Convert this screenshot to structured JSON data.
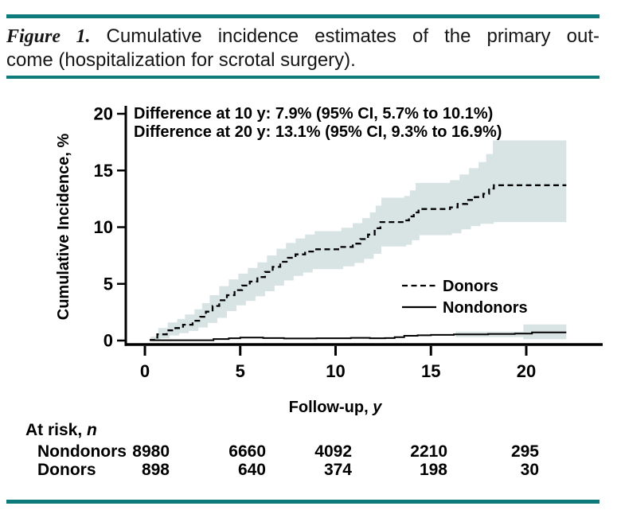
{
  "figure": {
    "label": "Figure 1.",
    "caption_line1": "Cumulative incidence estimates of the primary out-",
    "caption_line2": "come (hospitalization for scrotal surgery)."
  },
  "colors": {
    "teal_rule": "#0d7a7b",
    "ci_band": "#d8e3e3",
    "line": "#000000"
  },
  "chart_data": {
    "type": "line",
    "subtype": "step-cumulative-incidence",
    "annotations": [
      "Difference at 10 y: 7.9% (95% CI, 5.7% to 10.1%)",
      "Difference at 20 y: 13.1% (95% CI, 9.3% to 16.9%)"
    ],
    "ylabel": "Cumulative Incidence, %",
    "xlabel_prefix": "Follow-up, ",
    "xlabel_italic": "y",
    "xlim": [
      0,
      22.3
    ],
    "ylim": [
      0,
      20
    ],
    "x_ticks": [
      0,
      5,
      10,
      15,
      20
    ],
    "y_ticks": [
      0,
      5,
      10,
      15,
      20
    ],
    "x_tick_labels": [
      "0",
      "5",
      "10",
      "15",
      "20"
    ],
    "y_tick_labels": [
      "0",
      "5",
      "10",
      "15",
      "20"
    ],
    "grid": false,
    "legend_position": "inside-right",
    "legend": [
      {
        "label": "Donors",
        "style": "dashed"
      },
      {
        "label": "Nondonors",
        "style": "solid"
      }
    ],
    "series": [
      {
        "name": "Donors",
        "style": "dashed",
        "steps": [
          [
            0.25,
            0.05
          ],
          [
            0.65,
            0.55
          ],
          [
            1.15,
            0.9
          ],
          [
            1.6,
            1.1
          ],
          [
            2.0,
            1.4
          ],
          [
            2.5,
            1.75
          ],
          [
            2.9,
            2.1
          ],
          [
            3.2,
            2.55
          ],
          [
            3.55,
            3.05
          ],
          [
            3.9,
            3.55
          ],
          [
            4.3,
            4.0
          ],
          [
            4.7,
            4.45
          ],
          [
            5.1,
            4.85
          ],
          [
            5.5,
            5.2
          ],
          [
            5.9,
            5.6
          ],
          [
            6.3,
            6.05
          ],
          [
            6.7,
            6.5
          ],
          [
            7.1,
            6.95
          ],
          [
            7.5,
            7.3
          ],
          [
            7.9,
            7.6
          ],
          [
            8.4,
            7.85
          ],
          [
            8.9,
            8.05
          ],
          [
            10.3,
            8.25
          ],
          [
            10.9,
            8.55
          ],
          [
            11.3,
            8.95
          ],
          [
            11.7,
            9.35
          ],
          [
            12.05,
            9.9
          ],
          [
            12.35,
            10.45
          ],
          [
            13.6,
            10.6
          ],
          [
            13.85,
            10.95
          ],
          [
            14.1,
            11.3
          ],
          [
            14.35,
            11.6
          ],
          [
            16.0,
            11.75
          ],
          [
            16.4,
            12.05
          ],
          [
            16.9,
            12.4
          ],
          [
            17.3,
            12.65
          ],
          [
            17.75,
            12.95
          ],
          [
            18.05,
            13.4
          ],
          [
            18.3,
            13.7
          ],
          [
            22.1,
            13.7
          ]
        ]
      },
      {
        "name": "Nondonors",
        "style": "solid",
        "steps": [
          [
            0.3,
            0.03
          ],
          [
            3.6,
            0.13
          ],
          [
            4.4,
            0.2
          ],
          [
            5.0,
            0.27
          ],
          [
            6.2,
            0.22
          ],
          [
            7.3,
            0.18
          ],
          [
            9.0,
            0.2
          ],
          [
            10.8,
            0.24
          ],
          [
            11.8,
            0.2
          ],
          [
            12.6,
            0.22
          ],
          [
            13.1,
            0.3
          ],
          [
            13.6,
            0.42
          ],
          [
            14.3,
            0.46
          ],
          [
            15.0,
            0.5
          ],
          [
            16.2,
            0.55
          ],
          [
            18.0,
            0.58
          ],
          [
            19.4,
            0.62
          ],
          [
            20.3,
            0.72
          ],
          [
            22.1,
            0.72
          ]
        ]
      }
    ],
    "bands": [
      {
        "series": "Donors",
        "label": "95% CI",
        "upper": [
          [
            0.3,
            0.35
          ],
          [
            0.7,
            1.1
          ],
          [
            1.2,
            1.6
          ],
          [
            1.7,
            1.9
          ],
          [
            2.1,
            2.3
          ],
          [
            2.6,
            2.75
          ],
          [
            3.0,
            3.3
          ],
          [
            3.4,
            4.0
          ],
          [
            3.9,
            4.8
          ],
          [
            4.4,
            5.4
          ],
          [
            4.9,
            5.9
          ],
          [
            5.4,
            6.4
          ],
          [
            5.9,
            6.9
          ],
          [
            6.4,
            7.5
          ],
          [
            6.9,
            8.1
          ],
          [
            7.4,
            8.6
          ],
          [
            7.9,
            9.0
          ],
          [
            8.4,
            9.35
          ],
          [
            8.9,
            9.65
          ],
          [
            10.3,
            9.95
          ],
          [
            10.9,
            10.35
          ],
          [
            11.4,
            10.8
          ],
          [
            11.8,
            11.3
          ],
          [
            12.1,
            11.9
          ],
          [
            12.4,
            12.6
          ],
          [
            13.6,
            12.75
          ],
          [
            13.9,
            13.25
          ],
          [
            14.2,
            13.9
          ],
          [
            16.0,
            14.15
          ],
          [
            16.5,
            14.65
          ],
          [
            17.0,
            15.2
          ],
          [
            17.5,
            15.75
          ],
          [
            17.9,
            16.45
          ],
          [
            18.25,
            17.65
          ],
          [
            22.1,
            17.65
          ]
        ],
        "lower": [
          [
            0.3,
            0.0
          ],
          [
            0.8,
            0.2
          ],
          [
            1.3,
            0.45
          ],
          [
            1.8,
            0.65
          ],
          [
            2.3,
            0.85
          ],
          [
            2.8,
            1.15
          ],
          [
            3.3,
            1.55
          ],
          [
            3.8,
            2.0
          ],
          [
            4.3,
            2.6
          ],
          [
            4.8,
            3.1
          ],
          [
            5.3,
            3.5
          ],
          [
            5.8,
            3.9
          ],
          [
            6.3,
            4.35
          ],
          [
            6.8,
            4.85
          ],
          [
            7.3,
            5.3
          ],
          [
            7.8,
            5.7
          ],
          [
            8.3,
            6.0
          ],
          [
            8.8,
            6.3
          ],
          [
            10.4,
            6.55
          ],
          [
            11.0,
            6.85
          ],
          [
            11.5,
            7.2
          ],
          [
            12.0,
            7.65
          ],
          [
            12.4,
            8.3
          ],
          [
            13.7,
            8.45
          ],
          [
            14.0,
            8.85
          ],
          [
            14.4,
            9.3
          ],
          [
            16.1,
            9.45
          ],
          [
            16.6,
            9.8
          ],
          [
            17.1,
            10.1
          ],
          [
            17.6,
            10.3
          ],
          [
            18.3,
            10.45
          ],
          [
            22.1,
            10.45
          ]
        ]
      },
      {
        "series": "Nondonors",
        "label": "95% CI",
        "upper": [
          [
            16.3,
            0.78
          ],
          [
            19.85,
            1.42
          ],
          [
            22.1,
            1.42
          ]
        ],
        "lower": [
          [
            16.3,
            0.3
          ],
          [
            19.85,
            0.12
          ],
          [
            22.1,
            0.12
          ]
        ]
      }
    ]
  },
  "at_risk": {
    "title_prefix": "At risk, ",
    "title_italic": "n",
    "rows": [
      {
        "label": "Nondonors",
        "values": [
          "8980",
          "6660",
          "4092",
          "2210",
          "295"
        ]
      },
      {
        "label": "Donors",
        "values": [
          "898",
          "640",
          "374",
          "198",
          "30"
        ]
      }
    ]
  }
}
